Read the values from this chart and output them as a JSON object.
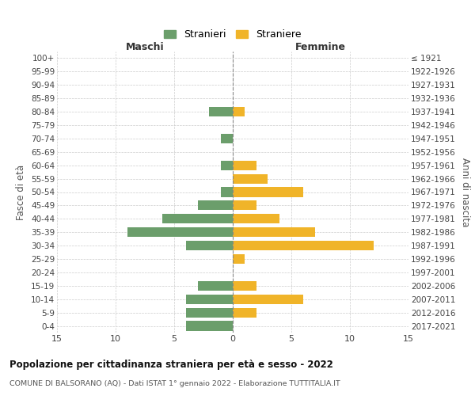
{
  "age_groups": [
    "0-4",
    "5-9",
    "10-14",
    "15-19",
    "20-24",
    "25-29",
    "30-34",
    "35-39",
    "40-44",
    "45-49",
    "50-54",
    "55-59",
    "60-64",
    "65-69",
    "70-74",
    "75-79",
    "80-84",
    "85-89",
    "90-94",
    "95-99",
    "100+"
  ],
  "birth_years": [
    "2017-2021",
    "2012-2016",
    "2007-2011",
    "2002-2006",
    "1997-2001",
    "1992-1996",
    "1987-1991",
    "1982-1986",
    "1977-1981",
    "1972-1976",
    "1967-1971",
    "1962-1966",
    "1957-1961",
    "1952-1956",
    "1947-1951",
    "1942-1946",
    "1937-1941",
    "1932-1936",
    "1927-1931",
    "1922-1926",
    "≤ 1921"
  ],
  "maschi": [
    4,
    4,
    4,
    3,
    0,
    0,
    4,
    9,
    6,
    3,
    1,
    0,
    1,
    0,
    1,
    0,
    2,
    0,
    0,
    0,
    0
  ],
  "femmine": [
    0,
    2,
    6,
    2,
    0,
    1,
    12,
    7,
    4,
    2,
    6,
    3,
    2,
    0,
    0,
    0,
    1,
    0,
    0,
    0,
    0
  ],
  "color_maschi": "#6b9e6b",
  "color_femmine": "#f0b429",
  "xlim": 15,
  "title": "Popolazione per cittadinanza straniera per età e sesso - 2022",
  "subtitle": "COMUNE DI BALSORANO (AQ) - Dati ISTAT 1° gennaio 2022 - Elaborazione TUTTITALIA.IT",
  "ylabel_left": "Fasce di età",
  "ylabel_right": "Anni di nascita",
  "label_maschi": "Stranieri",
  "label_femmine": "Straniere",
  "header_maschi": "Maschi",
  "header_femmine": "Femmine",
  "bg_color": "#ffffff",
  "grid_color": "#cccccc",
  "axis_label_color": "#555555",
  "tick_label_color": "#444444"
}
